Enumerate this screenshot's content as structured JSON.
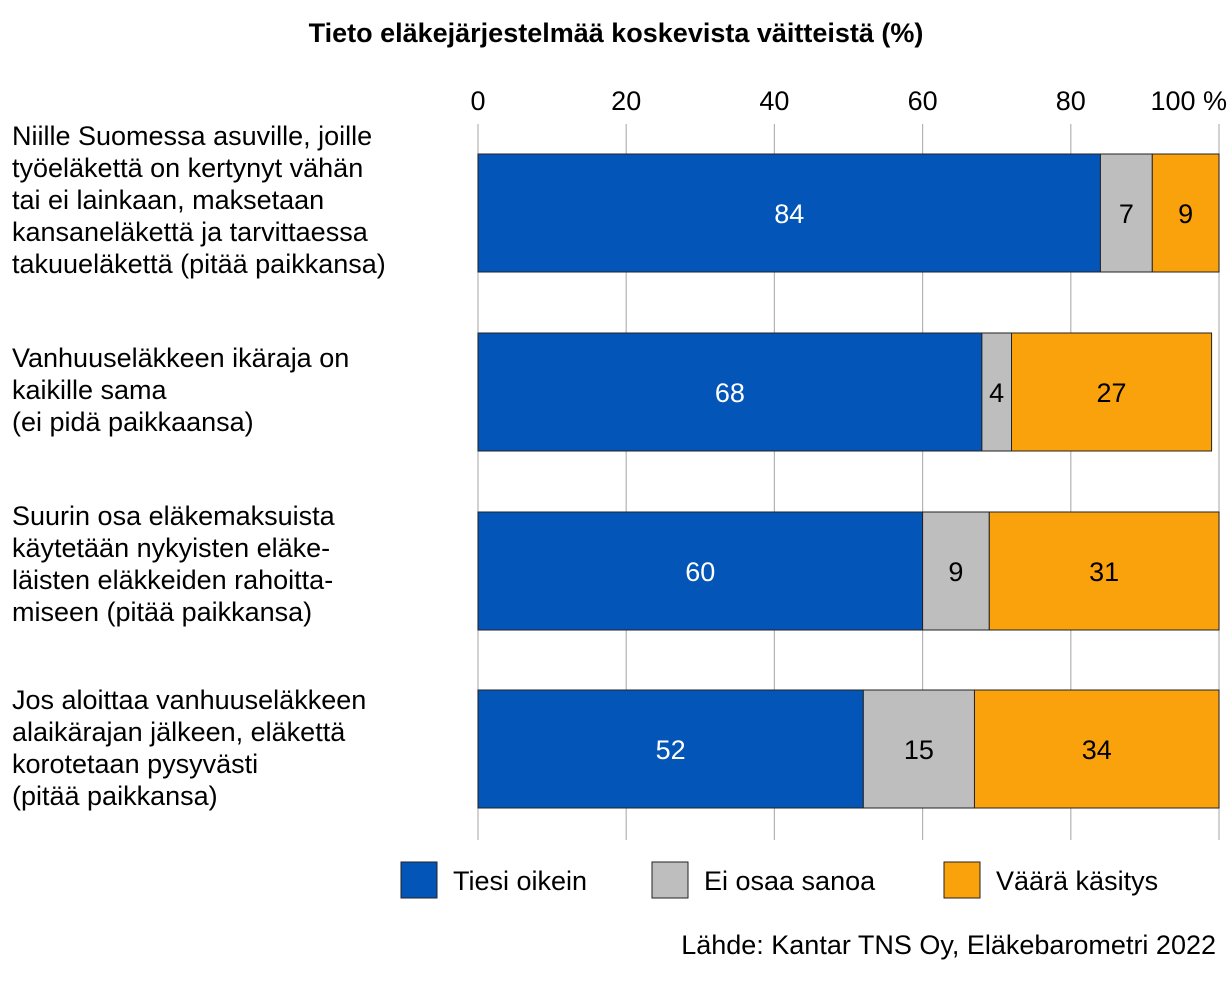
{
  "chart_data": {
    "type": "bar",
    "orientation": "horizontal",
    "stacked": true,
    "title": "Tieto eläkejärjestelmää koskevista väitteistä (%)",
    "xlim": [
      0,
      100
    ],
    "xticks": [
      "0",
      "20",
      "40",
      "60",
      "80",
      "100 %"
    ],
    "grid": true,
    "legend_position": "bottom",
    "categories": [
      "Niille Suomessa asuville, joille\ntyöeläkettä on kertynyt vähän\ntai ei lainkaan, maksetaan\nkansaneläkettä ja tarvittaessa\ntakuueläkettä (pitää paikkansa)",
      "Vanhuuseläkkeen ikäraja on\nkaikille sama\n(ei pidä paikkaansa)",
      "Suurin osa eläkemaksuista\nkäytetään nykyisten eläke-\nläisten eläkkeiden rahoitta-\nmiseen (pitää paikkansa)",
      "Jos aloittaa vanhuuseläkkeen\nalaikärajan jälkeen, eläkettä\nkorotetaan pysyvästi\n(pitää paikkansa)"
    ],
    "series": [
      {
        "name": "Tiesi oikein",
        "color": "#0455B8",
        "label_color": "#ffffff",
        "values": [
          84,
          68,
          60,
          52
        ]
      },
      {
        "name": "Ei osaa sanoa",
        "color": "#BEBEBE",
        "label_color": "#000000",
        "values": [
          7,
          4,
          9,
          15
        ]
      },
      {
        "name": "Väärä käsitys",
        "color": "#F9A20C",
        "label_color": "#000000",
        "values": [
          9,
          27,
          31,
          34
        ]
      }
    ]
  },
  "source": "Lähde: Kantar TNS Oy, Eläkebarometri 2022"
}
